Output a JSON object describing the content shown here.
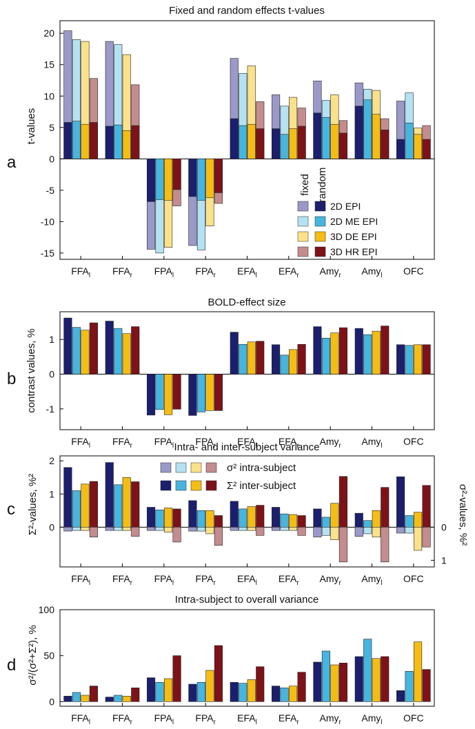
{
  "colors": {
    "2D EPI": "#1b1f6e",
    "2D ME EPI": "#47b5de",
    "3D DE EPI": "#f5bd14",
    "3D HR EPI": "#7e1219",
    "2D EPI_light": "#9b99c9",
    "2D ME EPI_light": "#b4e2f3",
    "3D DE EPI_light": "#fbe18a",
    "3D HR EPI_light": "#c48c8e"
  },
  "chart_data": [
    {
      "type": "bar",
      "panel": "a",
      "title": "Fixed and random effects t-values",
      "ylabel": "t-values",
      "ylim": [
        -16,
        22
      ],
      "yticks": [
        -15,
        -10,
        -5,
        0,
        5,
        10,
        15,
        20
      ],
      "categories": [
        {
          "base": "FFA",
          "sub": "l"
        },
        {
          "base": "FFA",
          "sub": "r"
        },
        {
          "base": "FPA",
          "sub": "l"
        },
        {
          "base": "FPA",
          "sub": "r"
        },
        {
          "base": "EFA",
          "sub": "l"
        },
        {
          "base": "EFA",
          "sub": "r"
        },
        {
          "base": "Amy",
          "sub": "r"
        },
        {
          "base": "Amy",
          "sub": "l"
        },
        {
          "base": "OFC",
          "sub": ""
        }
      ],
      "legend_headers": [
        "fixed",
        "random"
      ],
      "series": [
        {
          "name": "2D EPI",
          "fixed": [
            20.4,
            18.7,
            -14.4,
            -13.8,
            16.0,
            10.2,
            12.4,
            12.1,
            9.2
          ],
          "random": [
            5.8,
            5.2,
            -6.8,
            -6.0,
            6.4,
            4.8,
            7.3,
            8.4,
            3.1
          ]
        },
        {
          "name": "2D ME EPI",
          "fixed": [
            19.0,
            18.2,
            -15.0,
            -14.5,
            13.6,
            8.4,
            9.3,
            11.1,
            10.5
          ],
          "random": [
            6.0,
            5.4,
            -6.5,
            -6.6,
            5.3,
            3.9,
            6.6,
            9.4,
            5.7
          ]
        },
        {
          "name": "3D DE EPI",
          "fixed": [
            18.7,
            16.6,
            -14.1,
            -10.7,
            14.8,
            9.8,
            10.2,
            10.9,
            4.9
          ],
          "random": [
            5.5,
            4.5,
            -6.6,
            -6.2,
            5.5,
            4.8,
            5.5,
            7.1,
            3.9
          ]
        },
        {
          "name": "3D HR EPI",
          "fixed": [
            12.8,
            11.8,
            -7.5,
            -7.1,
            9.1,
            8.1,
            6.1,
            6.4,
            5.3
          ],
          "random": [
            5.8,
            5.3,
            -4.9,
            -5.4,
            4.8,
            5.2,
            4.1,
            4.6,
            3.1
          ]
        }
      ]
    },
    {
      "type": "bar",
      "panel": "b",
      "title": "BOLD-effect size",
      "ylabel": "contrast values, %",
      "ylim": [
        -1.6,
        1.8
      ],
      "yticks": [
        -1,
        0,
        1
      ],
      "series": [
        {
          "name": "2D EPI",
          "values": [
            1.62,
            1.53,
            -1.18,
            -1.19,
            1.21,
            0.85,
            1.37,
            1.32,
            0.85
          ]
        },
        {
          "name": "2D ME EPI",
          "values": [
            1.35,
            1.32,
            -1.02,
            -1.09,
            0.86,
            0.55,
            1.04,
            1.14,
            0.83
          ]
        },
        {
          "name": "3D DE EPI",
          "values": [
            1.27,
            1.17,
            -1.17,
            -1.05,
            0.93,
            0.71,
            1.19,
            1.24,
            0.85
          ]
        },
        {
          "name": "3D HR EPI",
          "values": [
            1.48,
            1.37,
            -1.01,
            -1.05,
            0.95,
            0.86,
            1.34,
            1.39,
            0.85
          ]
        }
      ]
    },
    {
      "type": "bar",
      "panel": "c",
      "title": "Intra- and inter-subject variance",
      "ylabel_left": "Σ²-values, %²",
      "ylabel_right": "σ²-values, %²",
      "ylim": [
        -1.2,
        2.15
      ],
      "yticks_left": [
        0,
        1,
        2
      ],
      "yticks_right": [
        {
          "value": 0,
          "label": "0"
        },
        {
          "value": 1,
          "label": "1"
        }
      ],
      "legend": {
        "intra_label": "σ² intra-subject",
        "inter_label": "Σ² inter-subject"
      },
      "series": [
        {
          "name": "2D EPI",
          "inter": [
            1.8,
            1.95,
            0.6,
            0.8,
            0.78,
            0.6,
            0.55,
            0.42,
            1.52
          ],
          "intra": [
            0.12,
            0.1,
            0.1,
            0.12,
            0.1,
            0.1,
            0.3,
            0.28,
            0.18
          ]
        },
        {
          "name": "2D ME EPI",
          "inter": [
            1.1,
            1.28,
            0.52,
            0.5,
            0.55,
            0.4,
            0.3,
            0.2,
            0.35
          ],
          "intra": [
            0.1,
            0.1,
            0.1,
            0.12,
            0.1,
            0.1,
            0.25,
            0.2,
            0.18
          ]
        },
        {
          "name": "3D DE EPI",
          "inter": [
            1.3,
            1.5,
            0.58,
            0.5,
            0.62,
            0.38,
            0.72,
            0.5,
            0.45
          ],
          "intra": [
            0.1,
            0.1,
            0.15,
            0.2,
            0.1,
            0.1,
            0.38,
            0.3,
            0.7
          ]
        },
        {
          "name": "3D HR EPI",
          "inter": [
            1.38,
            1.37,
            0.55,
            0.35,
            0.66,
            0.35,
            1.53,
            1.2,
            1.26
          ],
          "intra": [
            0.3,
            0.28,
            0.45,
            0.55,
            0.25,
            0.25,
            1.05,
            1.05,
            0.6
          ]
        }
      ]
    },
    {
      "type": "bar",
      "panel": "d",
      "title": "Intra-subject to overall variance",
      "ylabel": "σ²/(σ²+Σ²), %",
      "ylim": [
        -5,
        100
      ],
      "yticks": [
        0,
        50,
        100
      ],
      "series": [
        {
          "name": "2D EPI",
          "values": [
            6,
            5,
            26,
            19,
            21,
            17,
            43,
            49,
            12
          ]
        },
        {
          "name": "2D ME EPI",
          "values": [
            10,
            7,
            21,
            21,
            20,
            15,
            55,
            68,
            33
          ]
        },
        {
          "name": "3D DE EPI",
          "values": [
            7,
            6,
            25,
            34,
            24,
            17,
            40,
            47,
            65
          ]
        },
        {
          "name": "3D HR EPI",
          "values": [
            17,
            15,
            50,
            61,
            38,
            32,
            42,
            49,
            35
          ]
        }
      ]
    }
  ],
  "panel_labels": [
    "a",
    "b",
    "c",
    "d"
  ]
}
